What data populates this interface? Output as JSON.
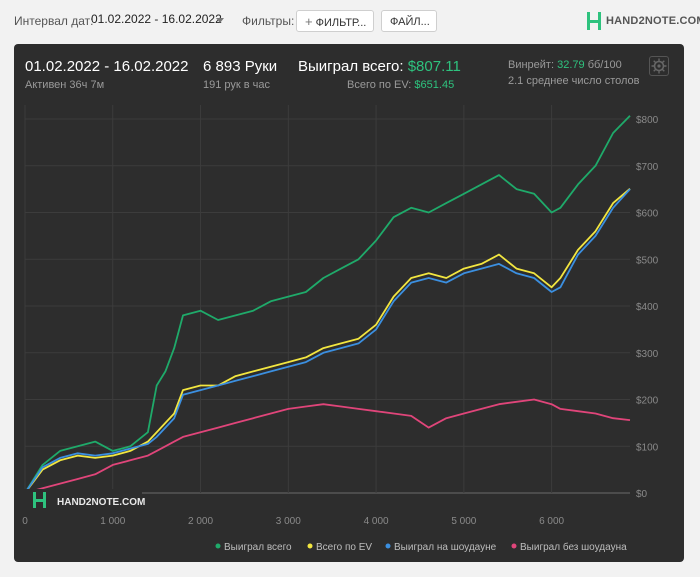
{
  "toolbar": {
    "date_interval_label": "Интервал дат:",
    "date_interval_value": "01.02.2022 - 16.02.2022",
    "filters_label": "Фильтры:",
    "filter_button": "ФИЛЬТР...",
    "file_button": "ФАЙЛ...",
    "logo_text": "HAND2NOTE.COM"
  },
  "header": {
    "date_range": "01.02.2022 - 16.02.2022",
    "active_time": "Активен 36ч 7м",
    "hands": "6 893 Руки",
    "hands_per_hour": "191 рук в час",
    "won_total_label": "Выиграл всего:",
    "won_total_value": "$807.11",
    "ev_total_label": "Всего по EV:",
    "ev_total_value": "$651.45",
    "winrate_label": "Винрейт:",
    "winrate_value": "32.79",
    "winrate_unit": "бб/100",
    "avg_tables": "2.1 среднее число столов"
  },
  "colors": {
    "background": "#2d2d2d",
    "accent": "#2ec27e",
    "won": "#1faa6a",
    "ev": "#f2e640",
    "showdown": "#3b8fe0",
    "nonshowdown": "#e0457a"
  },
  "chart_data": {
    "type": "line",
    "title": "",
    "xlabel": "",
    "ylabel": "",
    "xlim": [
      0,
      6893
    ],
    "ylim": [
      0,
      800
    ],
    "y_axis_position": "right",
    "grid": true,
    "legend_position": "bottom",
    "x_ticks": [
      "0",
      "1 000",
      "2 000",
      "3 000",
      "4 000",
      "5 000",
      "6 000"
    ],
    "y_ticks": [
      "$0",
      "$100",
      "$200",
      "$300",
      "$400",
      "$500",
      "$600",
      "$700",
      "$800"
    ],
    "watermark": "HAND2NOTE.COM",
    "series": [
      {
        "name": "Выиграл всего",
        "color": "#1faa6a",
        "x": [
          0,
          200,
          400,
          600,
          800,
          1000,
          1200,
          1400,
          1500,
          1600,
          1700,
          1800,
          2000,
          2200,
          2400,
          2600,
          2800,
          3000,
          3200,
          3400,
          3600,
          3800,
          4000,
          4200,
          4400,
          4600,
          4800,
          5000,
          5200,
          5400,
          5600,
          5800,
          6000,
          6100,
          6300,
          6500,
          6700,
          6893
        ],
        "y": [
          0,
          60,
          90,
          100,
          110,
          90,
          100,
          130,
          230,
          260,
          310,
          380,
          390,
          370,
          380,
          390,
          410,
          420,
          430,
          460,
          480,
          500,
          540,
          590,
          610,
          600,
          620,
          640,
          660,
          680,
          650,
          640,
          600,
          610,
          660,
          700,
          770,
          807
        ]
      },
      {
        "name": "Всего по EV",
        "color": "#f2e640",
        "x": [
          0,
          200,
          400,
          600,
          800,
          1000,
          1200,
          1400,
          1500,
          1600,
          1700,
          1800,
          2000,
          2200,
          2400,
          2600,
          2800,
          3000,
          3200,
          3400,
          3600,
          3800,
          4000,
          4200,
          4400,
          4600,
          4800,
          5000,
          5200,
          5400,
          5600,
          5800,
          6000,
          6100,
          6300,
          6500,
          6700,
          6893
        ],
        "y": [
          0,
          50,
          70,
          80,
          75,
          80,
          90,
          110,
          130,
          150,
          170,
          220,
          230,
          230,
          250,
          260,
          270,
          280,
          290,
          310,
          320,
          330,
          360,
          420,
          460,
          470,
          460,
          480,
          490,
          510,
          480,
          470,
          440,
          460,
          520,
          560,
          620,
          651
        ]
      },
      {
        "name": "Выиграл на шоудауне",
        "color": "#3b8fe0",
        "x": [
          0,
          200,
          400,
          600,
          800,
          1000,
          1200,
          1400,
          1500,
          1600,
          1700,
          1800,
          2000,
          2200,
          2400,
          2600,
          2800,
          3000,
          3200,
          3400,
          3600,
          3800,
          4000,
          4200,
          4400,
          4600,
          4800,
          5000,
          5200,
          5400,
          5600,
          5800,
          6000,
          6100,
          6300,
          6500,
          6700,
          6893
        ],
        "y": [
          0,
          55,
          75,
          85,
          80,
          85,
          95,
          105,
          120,
          140,
          160,
          210,
          220,
          230,
          240,
          250,
          260,
          270,
          280,
          300,
          310,
          320,
          350,
          410,
          450,
          460,
          450,
          470,
          480,
          490,
          470,
          460,
          430,
          440,
          510,
          550,
          610,
          650
        ]
      },
      {
        "name": "Выиграл без шоудауна",
        "color": "#e0457a",
        "x": [
          0,
          200,
          400,
          600,
          800,
          1000,
          1200,
          1400,
          1500,
          1600,
          1700,
          1800,
          2000,
          2200,
          2400,
          2600,
          2800,
          3000,
          3200,
          3400,
          3600,
          3800,
          4000,
          4200,
          4400,
          4600,
          4800,
          5000,
          5200,
          5400,
          5600,
          5800,
          6000,
          6100,
          6300,
          6500,
          6700,
          6893
        ],
        "y": [
          0,
          10,
          20,
          30,
          40,
          60,
          70,
          80,
          90,
          100,
          110,
          120,
          130,
          140,
          150,
          160,
          170,
          180,
          185,
          190,
          185,
          180,
          175,
          170,
          165,
          140,
          160,
          170,
          180,
          190,
          195,
          200,
          190,
          180,
          175,
          170,
          160,
          156
        ]
      }
    ]
  }
}
